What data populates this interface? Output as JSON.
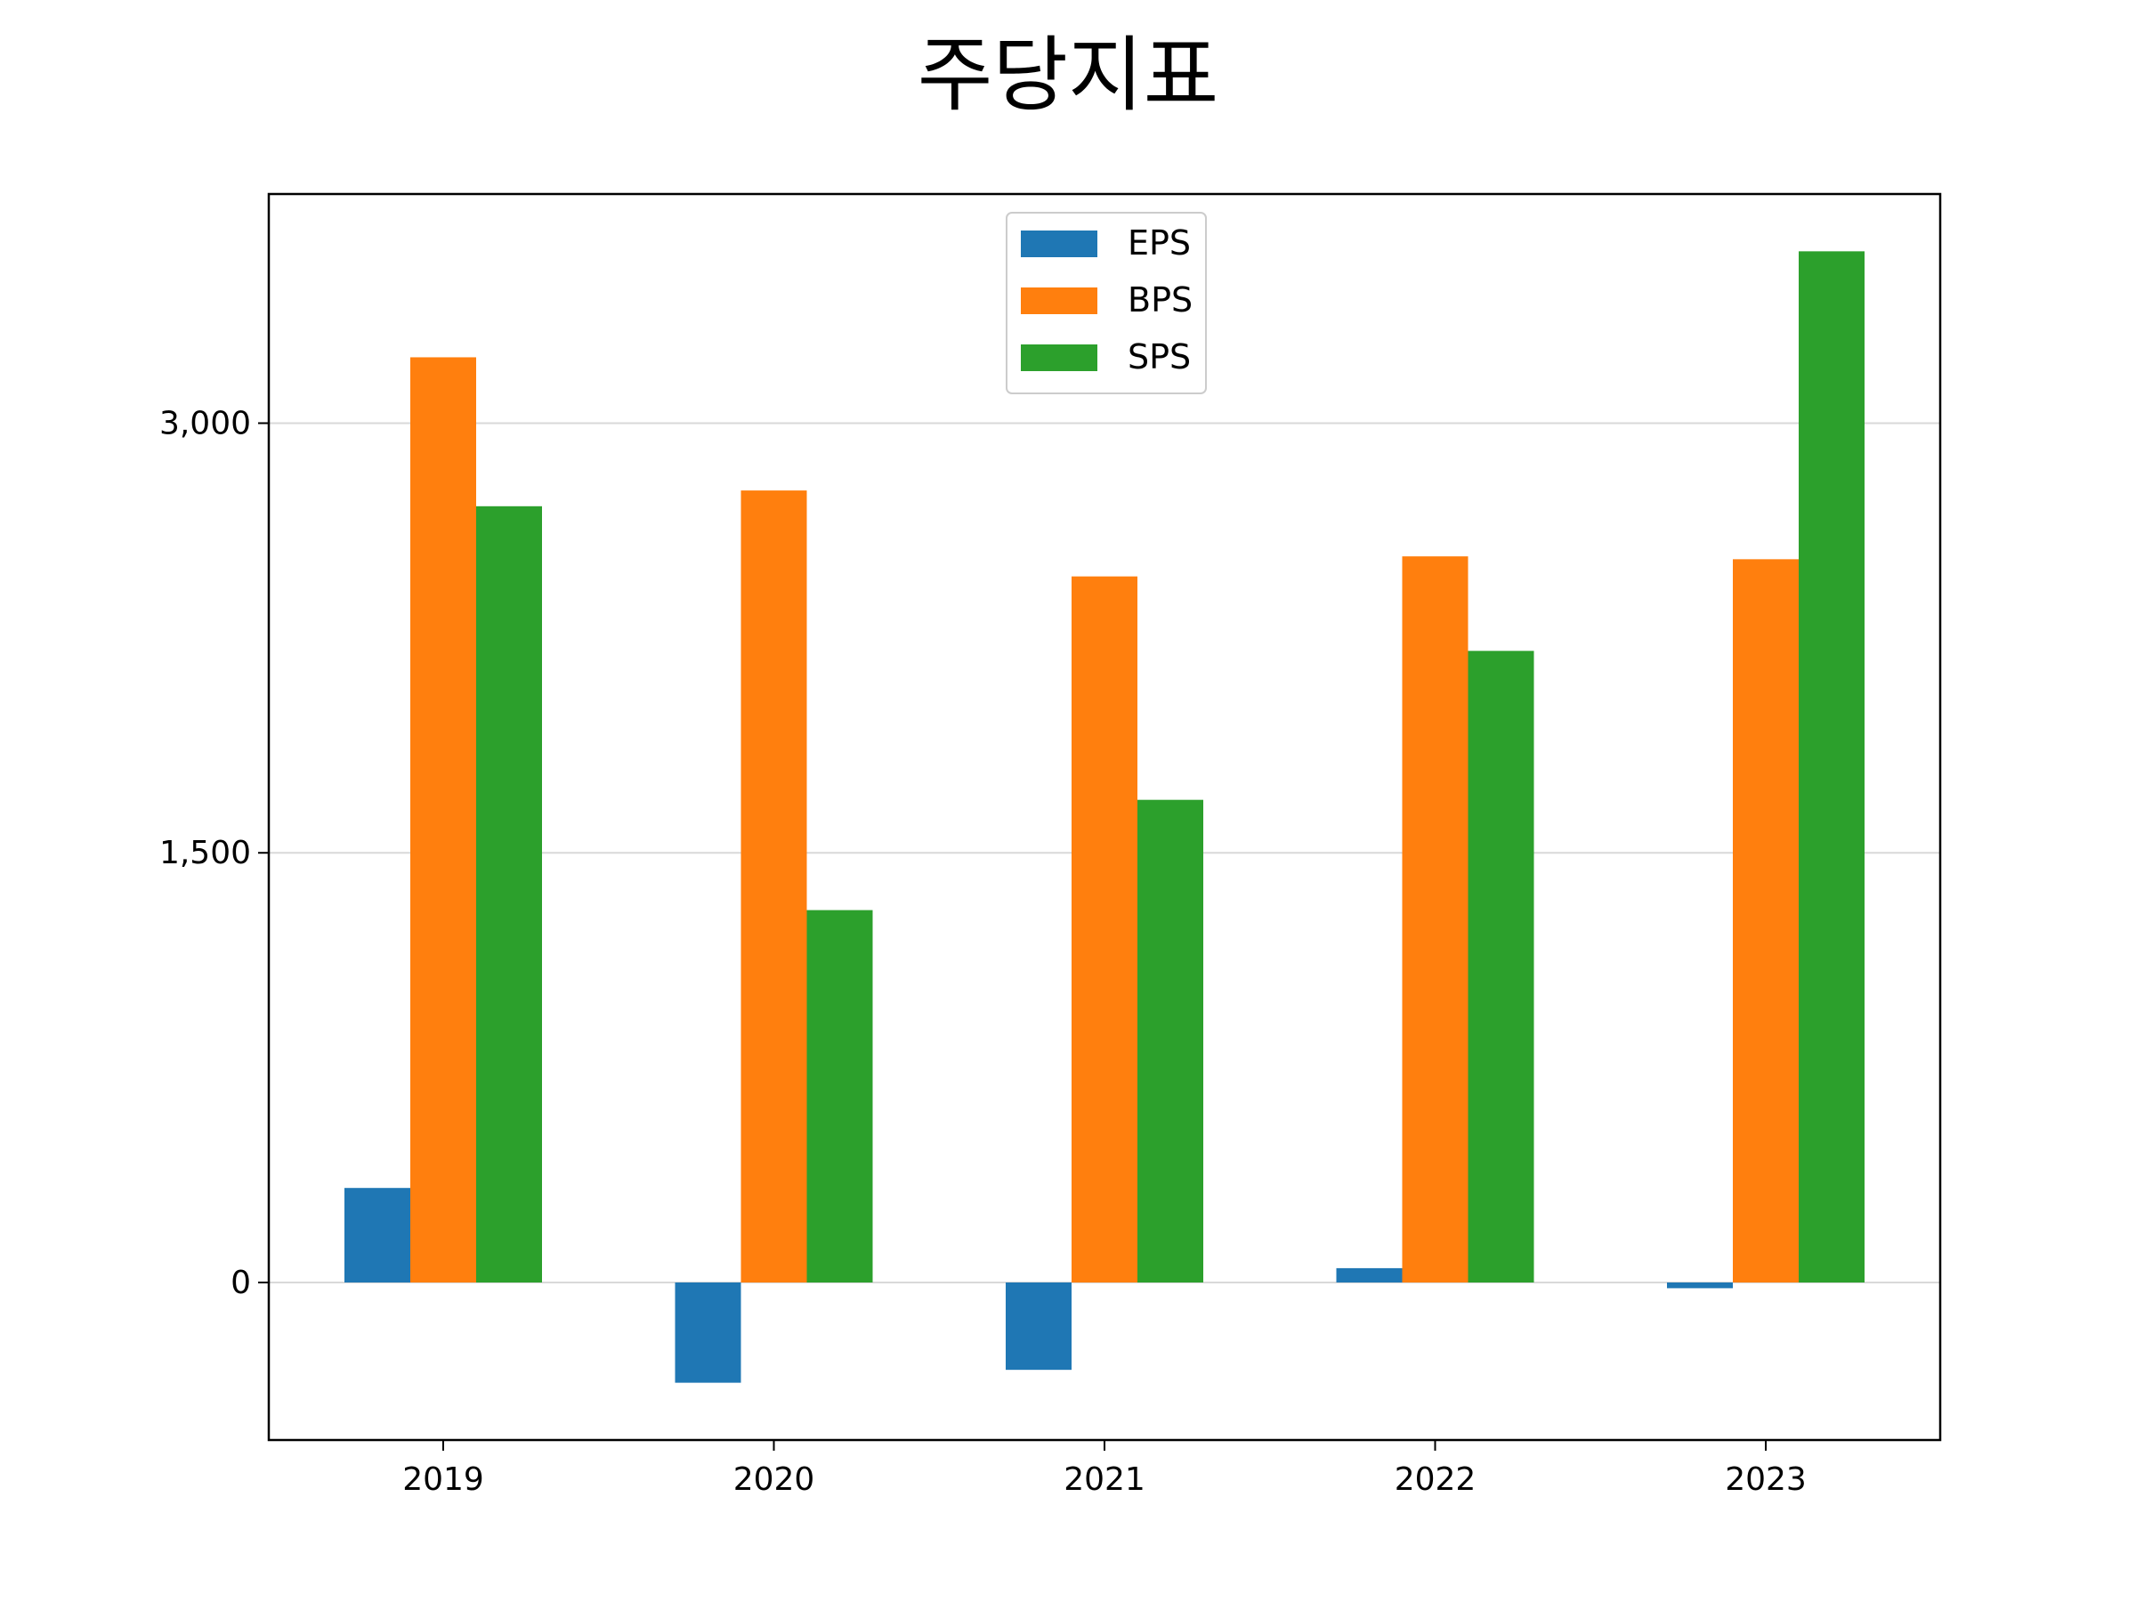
{
  "title": "주당지표",
  "chart_data": {
    "type": "bar",
    "title": "주당지표",
    "xlabel": "",
    "ylabel": "",
    "categories": [
      "2019",
      "2020",
      "2021",
      "2022",
      "2023"
    ],
    "series": [
      {
        "name": "EPS",
        "color": "#1f77b4",
        "values": [
          330,
          -350,
          -305,
          50,
          -20
        ]
      },
      {
        "name": "BPS",
        "color": "#ff7f0e",
        "values": [
          3230,
          2765,
          2465,
          2535,
          2525
        ]
      },
      {
        "name": "SPS",
        "color": "#2ca02c",
        "values": [
          2710,
          1300,
          1685,
          2205,
          3600
        ]
      }
    ],
    "ylim": [
      -550,
      3800
    ],
    "yticks": [
      0,
      1500,
      3000
    ],
    "ytick_labels": [
      "0",
      "1,500",
      "3,000"
    ],
    "grid": "horizontal",
    "legend_position": "top-center"
  }
}
